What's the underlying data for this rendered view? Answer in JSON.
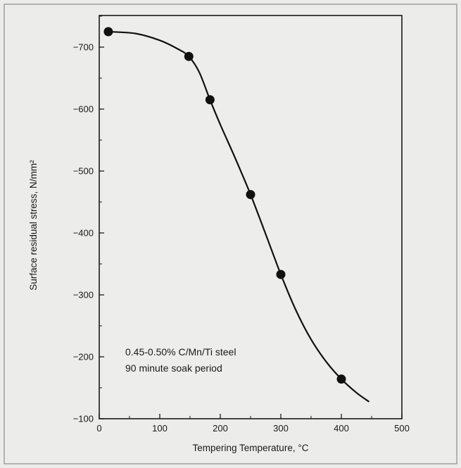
{
  "chart_data": {
    "type": "scatter",
    "title": "",
    "xlabel": "Tempering Temperature, °C",
    "ylabel": "Surface residual stress, N/mm²",
    "xlim": [
      0,
      500
    ],
    "ylim": [
      -100,
      -750
    ],
    "y_axis_direction": "more negative upward",
    "x_ticks": [
      0,
      100,
      200,
      300,
      400,
      500
    ],
    "x_tick_labels": [
      "0",
      "100",
      "200",
      "300",
      "400",
      "500"
    ],
    "y_ticks": [
      -100,
      -200,
      -300,
      -400,
      -500,
      -600,
      -700
    ],
    "y_tick_labels": [
      "−100",
      "−200",
      "−300",
      "−400",
      "−500",
      "−600",
      "−700"
    ],
    "grid": false,
    "series": [
      {
        "points": [
          {
            "x": 15,
            "y": -725
          },
          {
            "x": 148,
            "y": -685
          },
          {
            "x": 183,
            "y": -615
          },
          {
            "x": 250,
            "y": -462
          },
          {
            "x": 300,
            "y": -333
          },
          {
            "x": 400,
            "y": -164
          }
        ],
        "fit_curve": [
          {
            "x": 15,
            "y": -725
          },
          {
            "x": 60,
            "y": -722
          },
          {
            "x": 100,
            "y": -711
          },
          {
            "x": 130,
            "y": -697
          },
          {
            "x": 148,
            "y": -685
          },
          {
            "x": 165,
            "y": -660
          },
          {
            "x": 183,
            "y": -615
          },
          {
            "x": 200,
            "y": -575
          },
          {
            "x": 225,
            "y": -520
          },
          {
            "x": 250,
            "y": -462
          },
          {
            "x": 275,
            "y": -398
          },
          {
            "x": 300,
            "y": -333
          },
          {
            "x": 325,
            "y": -275
          },
          {
            "x": 350,
            "y": -228
          },
          {
            "x": 375,
            "y": -192
          },
          {
            "x": 400,
            "y": -164
          },
          {
            "x": 425,
            "y": -142
          },
          {
            "x": 445,
            "y": -128
          }
        ],
        "color": "#111111"
      }
    ],
    "annotations": [
      "0.45-0.50% C/Mn/Ti steel",
      "90 minute soak period"
    ]
  }
}
